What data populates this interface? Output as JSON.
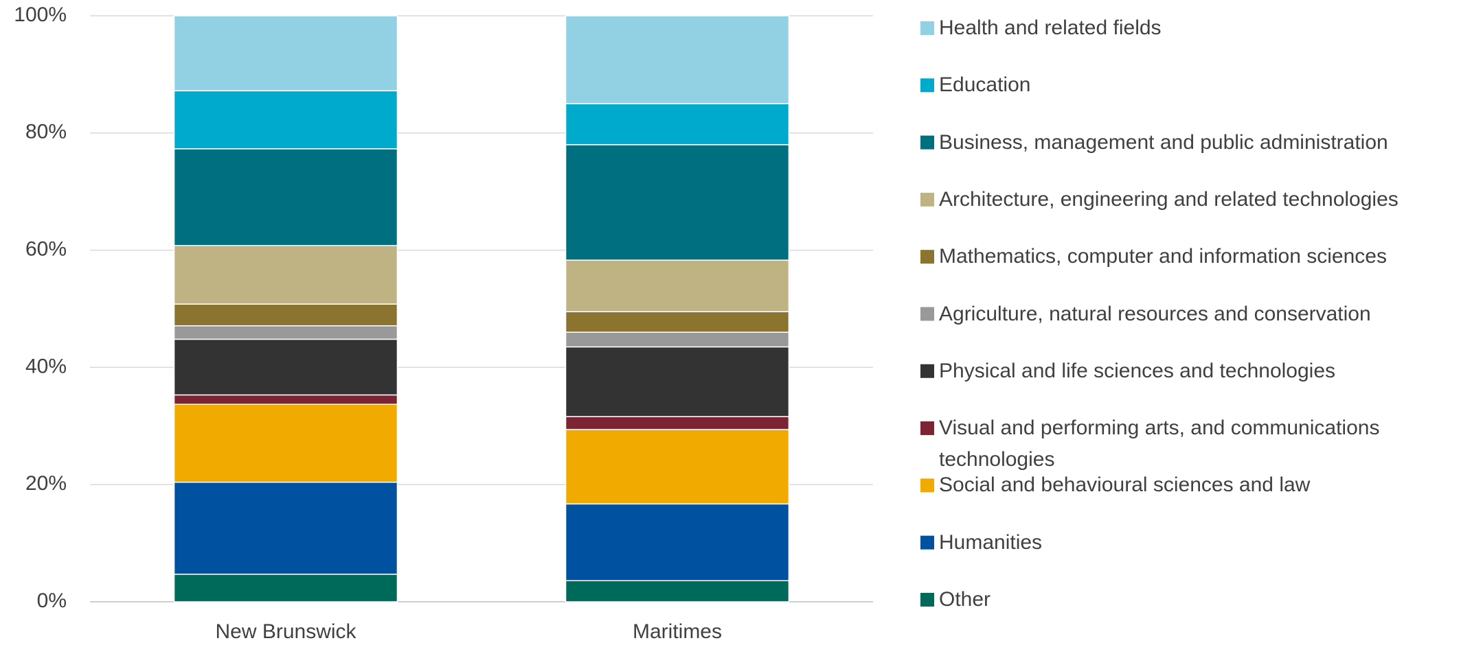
{
  "chart_data": {
    "type": "stacked_bar",
    "categories": [
      "New Brunswick",
      "Maritimes"
    ],
    "series": [
      {
        "name": "Other",
        "color": "#006a5a",
        "values": [
          4.7,
          3.6
        ]
      },
      {
        "name": "Humanities",
        "color": "#0052a0",
        "values": [
          15.7,
          13.1
        ]
      },
      {
        "name": "Social and behavioural sciences and law",
        "color": "#f0aa00",
        "values": [
          13.3,
          12.7
        ]
      },
      {
        "name": "Visual and performing arts, and communications technologies",
        "color": "#7b2433",
        "values": [
          1.6,
          2.2
        ]
      },
      {
        "name": "Physical and life sciences and technologies",
        "color": "#333333",
        "values": [
          9.5,
          11.9
        ]
      },
      {
        "name": "Agriculture, natural resources and conservation",
        "color": "#999999",
        "values": [
          2.3,
          2.5
        ]
      },
      {
        "name": "Mathematics, computer and information sciences",
        "color": "#8b7430",
        "values": [
          3.7,
          3.5
        ]
      },
      {
        "name": "Architecture, engineering and related technologies",
        "color": "#c0b383",
        "values": [
          10.0,
          8.8
        ]
      },
      {
        "name": "Business, management and public administration",
        "color": "#007080",
        "values": [
          16.5,
          19.7
        ]
      },
      {
        "name": "Education",
        "color": "#00aacc",
        "values": [
          9.9,
          7.0
        ]
      },
      {
        "name": "Health and related fields",
        "color": "#92d0e4",
        "values": [
          12.8,
          15.0
        ]
      }
    ],
    "ylim": [
      0,
      100
    ],
    "yticks": [
      {
        "value": 0,
        "label": "0%"
      },
      {
        "value": 20,
        "label": "20%"
      },
      {
        "value": 40,
        "label": "40%"
      },
      {
        "value": 60,
        "label": "60%"
      },
      {
        "value": 80,
        "label": "80%"
      },
      {
        "value": 100,
        "label": "100%"
      }
    ],
    "grid": true,
    "legend": "right"
  }
}
